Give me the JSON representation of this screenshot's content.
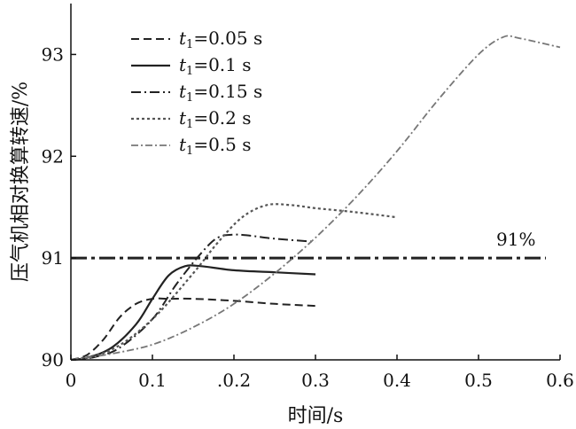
{
  "chart_data": {
    "type": "line",
    "xlabel": "时间/s",
    "ylabel": "压气机相对换算转速/%",
    "xlim": [
      0,
      0.6
    ],
    "ylim": [
      90,
      93.5
    ],
    "x_ticks": [
      "0",
      "0.1",
      ".0.2",
      "0.3",
      "0.4",
      "0.5",
      "0.6"
    ],
    "x_tick_values": [
      0,
      0.1,
      0.2,
      0.3,
      0.4,
      0.5,
      0.6
    ],
    "y_ticks": [
      "90",
      "91",
      "92",
      "93"
    ],
    "y_tick_values": [
      90,
      91,
      92,
      93
    ],
    "legend_position": "top-left",
    "series": [
      {
        "name_prefix": "t",
        "name_sub": "1",
        "name_suffix": "=0.05 s",
        "style": "dashed",
        "color": "#222222",
        "x": [
          0,
          0.02,
          0.04,
          0.06,
          0.08,
          0.1,
          0.12,
          0.15,
          0.2,
          0.25,
          0.3
        ],
        "y": [
          90.0,
          90.05,
          90.2,
          90.42,
          90.55,
          90.6,
          90.6,
          90.6,
          90.58,
          90.55,
          90.53
        ]
      },
      {
        "name_prefix": "t",
        "name_sub": "1",
        "name_suffix": "=0.1 s",
        "style": "solid",
        "color": "#222222",
        "x": [
          0,
          0.02,
          0.05,
          0.08,
          0.1,
          0.12,
          0.14,
          0.16,
          0.2,
          0.25,
          0.3
        ],
        "y": [
          90.0,
          90.02,
          90.12,
          90.35,
          90.6,
          90.83,
          90.92,
          90.92,
          90.88,
          90.86,
          90.84
        ]
      },
      {
        "name_prefix": "t",
        "name_sub": "1",
        "name_suffix": "=0.15 s",
        "style": "dashdot",
        "color": "#222222",
        "x": [
          0,
          0.03,
          0.06,
          0.1,
          0.13,
          0.16,
          0.18,
          0.2,
          0.22,
          0.25,
          0.3
        ],
        "y": [
          90.0,
          90.03,
          90.12,
          90.4,
          90.75,
          91.05,
          91.2,
          91.23,
          91.22,
          91.19,
          91.16
        ]
      },
      {
        "name_prefix": "t",
        "name_sub": "1",
        "name_suffix": "=0.2 s",
        "style": "dotted",
        "color": "#555555",
        "x": [
          0,
          0.05,
          0.1,
          0.15,
          0.18,
          0.21,
          0.24,
          0.27,
          0.3,
          0.35,
          0.4
        ],
        "y": [
          90.0,
          90.1,
          90.4,
          90.85,
          91.15,
          91.4,
          91.52,
          91.52,
          91.49,
          91.45,
          91.4
        ]
      },
      {
        "name_prefix": "t",
        "name_sub": "1",
        "name_suffix": "=0.5 s",
        "style": "dashdot-light",
        "color": "#777777",
        "x": [
          0,
          0.05,
          0.1,
          0.15,
          0.2,
          0.25,
          0.3,
          0.35,
          0.4,
          0.45,
          0.5,
          0.53,
          0.55,
          0.6
        ],
        "y": [
          90.0,
          90.06,
          90.15,
          90.32,
          90.55,
          90.85,
          91.2,
          91.6,
          92.05,
          92.55,
          93.0,
          93.17,
          93.16,
          93.07
        ]
      }
    ],
    "reference_line": {
      "y": 91,
      "label": "91%",
      "style": "dashdot-heavy",
      "color": "#222222"
    }
  }
}
